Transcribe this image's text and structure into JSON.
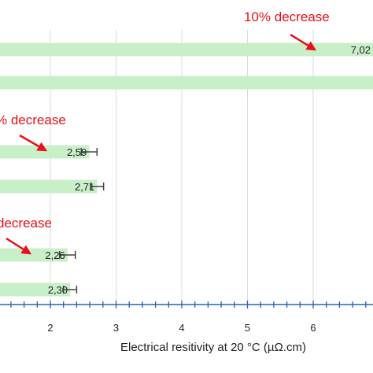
{
  "chart_data": {
    "type": "bar",
    "orientation": "horizontal",
    "xlabel": "Electrical resitivity at 20 °C (µΩ.cm)",
    "xlim": [
      0.2,
      6.9
    ],
    "xticks": [
      2,
      3,
      4,
      5,
      6
    ],
    "grid": true,
    "colors": {
      "bar": "#c9efc9",
      "axis": "#2a62b0",
      "grid": "#d9d9d9",
      "annotation": "#e8101a",
      "errorbar": "#444444",
      "text": "#222222"
    },
    "bars": [
      {
        "value": 7.02,
        "label": "7,02",
        "error": null
      },
      {
        "value": 7.4,
        "label": "",
        "error": null
      },
      {
        "value": 2.59,
        "label": "2,59",
        "error": 0.12
      },
      {
        "value": 2.71,
        "label": "2,71",
        "error": 0.1
      },
      {
        "value": 2.26,
        "label": "2,26",
        "error": 0.12
      },
      {
        "value": 2.3,
        "label": "2,30",
        "error": 0.1
      }
    ],
    "annotations": [
      {
        "text": "10% decrease",
        "arrow_to_bar": 0
      },
      {
        "text": "% decrease",
        "arrow_to_bar": 2
      },
      {
        "text": "decrease",
        "arrow_to_bar": 4
      }
    ]
  }
}
